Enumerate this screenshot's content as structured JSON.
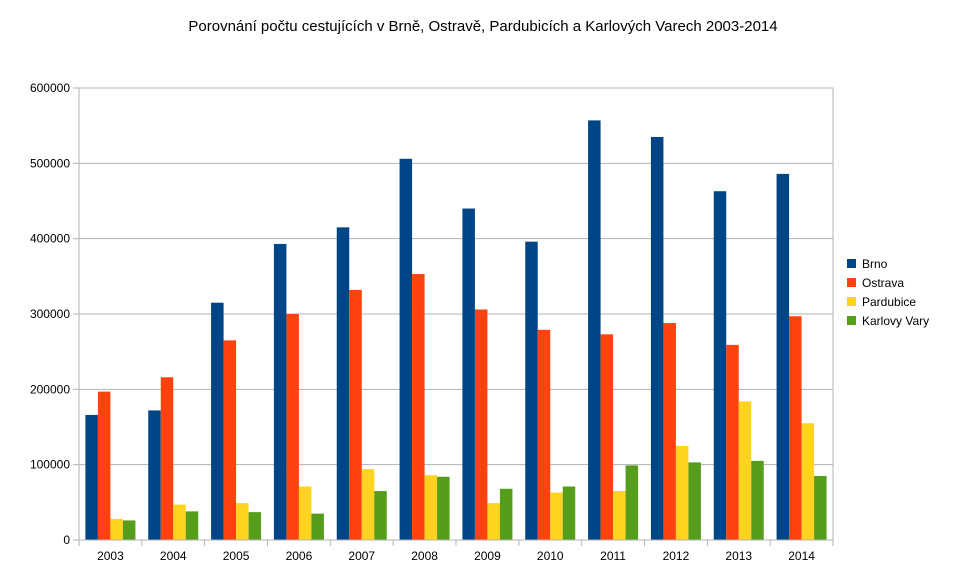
{
  "chart_data": {
    "type": "bar",
    "title": "Porovnání počtu cestujících v Brně, Ostravě, Pardubicích a Karlových Varech 2003-2014",
    "xlabel": "",
    "ylabel": "",
    "categories": [
      "2003",
      "2004",
      "2005",
      "2006",
      "2007",
      "2008",
      "2009",
      "2010",
      "2011",
      "2012",
      "2013",
      "2014"
    ],
    "series": [
      {
        "name": "Brno",
        "color": "#004586",
        "values": [
          166000,
          172000,
          315000,
          393000,
          415000,
          506000,
          440000,
          396000,
          557000,
          535000,
          463000,
          486000
        ]
      },
      {
        "name": "Ostrava",
        "color": "#ff420e",
        "values": [
          197000,
          216000,
          265000,
          300000,
          332000,
          353000,
          306000,
          279000,
          273000,
          288000,
          259000,
          297000
        ]
      },
      {
        "name": "Pardubice",
        "color": "#ffd320",
        "values": [
          28000,
          47000,
          49000,
          71000,
          94000,
          86000,
          49000,
          63000,
          65000,
          125000,
          184000,
          155000
        ]
      },
      {
        "name": "Karlovy Vary",
        "color": "#579d1c",
        "values": [
          26000,
          38000,
          37000,
          35000,
          65000,
          84000,
          68000,
          71000,
          99000,
          103000,
          105000,
          85000
        ]
      }
    ],
    "ylim": [
      0,
      600000
    ],
    "yticks": [
      "0",
      "100000",
      "200000",
      "300000",
      "400000",
      "500000",
      "600000"
    ],
    "grid": "horizontal",
    "legend": "right"
  }
}
